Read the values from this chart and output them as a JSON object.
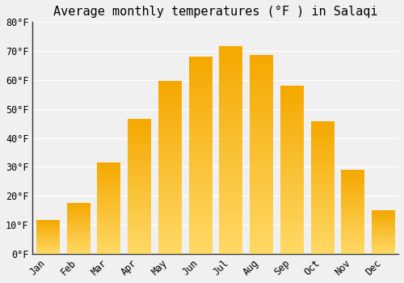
{
  "title": "Average monthly temperatures (°F ) in Salaqi",
  "months": [
    "Jan",
    "Feb",
    "Mar",
    "Apr",
    "May",
    "Jun",
    "Jul",
    "Aug",
    "Sep",
    "Oct",
    "Nov",
    "Dec"
  ],
  "values": [
    11.5,
    17.5,
    31.5,
    46.5,
    59.5,
    68.0,
    71.5,
    68.5,
    58.0,
    45.5,
    29.0,
    15.0
  ],
  "bar_color_top": "#F5A800",
  "bar_color_bottom": "#FFD966",
  "ylim": [
    0,
    80
  ],
  "yticks": [
    0,
    10,
    20,
    30,
    40,
    50,
    60,
    70,
    80
  ],
  "ytick_labels": [
    "0°F",
    "10°F",
    "20°F",
    "30°F",
    "40°F",
    "50°F",
    "60°F",
    "70°F",
    "80°F"
  ],
  "background_color": "#f0f0f0",
  "grid_color": "#ffffff",
  "title_fontsize": 11,
  "tick_fontsize": 8.5,
  "bar_width": 0.75
}
